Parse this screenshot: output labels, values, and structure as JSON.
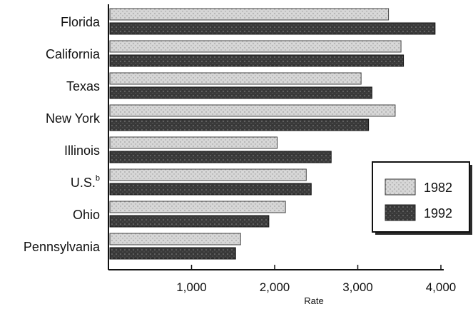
{
  "chart_data": {
    "type": "bar",
    "orientation": "horizontal",
    "categories": [
      "Florida",
      "California",
      "Texas",
      "New York",
      "Illinois",
      "U.S.",
      "Ohio",
      "Pennsylvania"
    ],
    "category_superscripts": [
      "",
      "",
      "",
      "",
      "",
      "b",
      "",
      ""
    ],
    "series": [
      {
        "name": "1982",
        "values": [
          3370,
          3520,
          3040,
          3450,
          2030,
          2380,
          2130,
          1590
        ]
      },
      {
        "name": "1992",
        "values": [
          3930,
          3550,
          3170,
          3130,
          2680,
          2440,
          1930,
          1530
        ]
      }
    ],
    "xlim": [
      0,
      4000
    ],
    "xticks": [
      1000,
      2000,
      3000,
      4000
    ],
    "xtick_labels": [
      "1,000",
      "2,000",
      "3,000",
      "4,000"
    ],
    "xlabel": "Rate",
    "legend_position": "right",
    "colors": {
      "1982": "#cfcfcf",
      "1992": "#2e2e2e"
    }
  }
}
